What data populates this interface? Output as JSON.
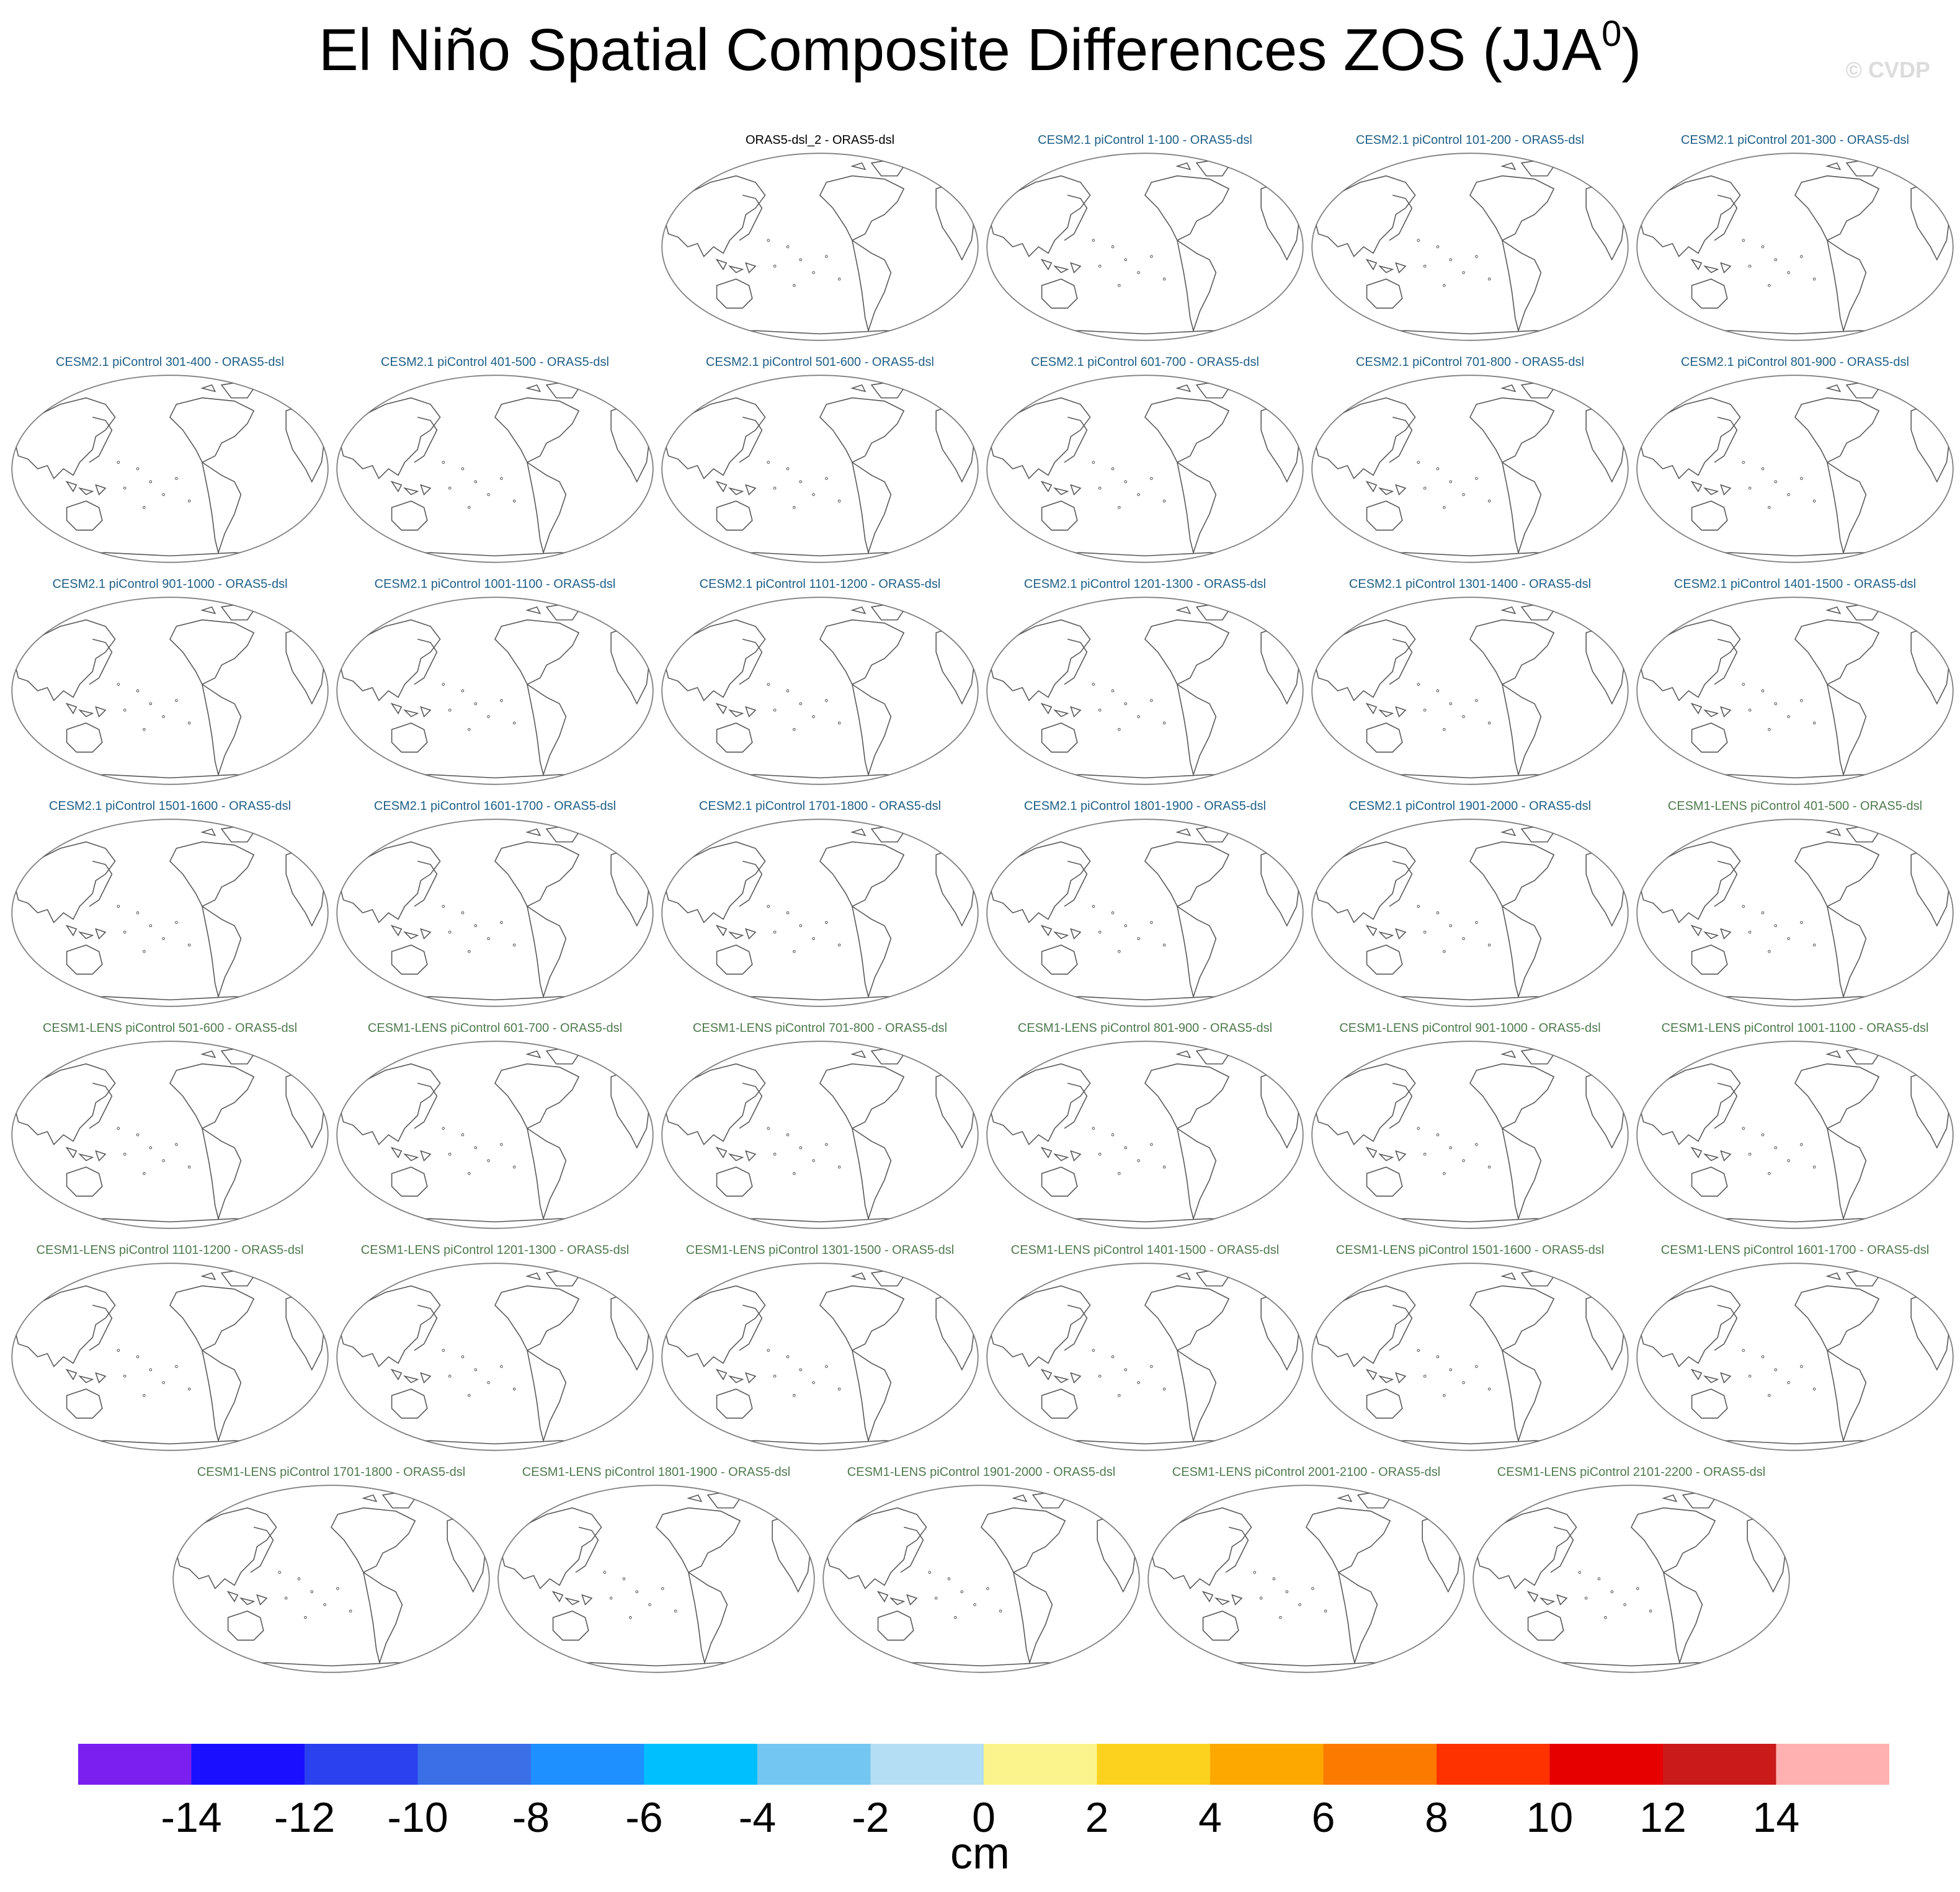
{
  "title": {
    "main": "El Niño Spatial Composite Differences ZOS (JJA",
    "superscript": "0",
    "close": ")"
  },
  "watermark": "© CVDP",
  "colors": {
    "cesm2_title": "#1f5f87",
    "cesm1_title": "#4f7a4f",
    "obs_title": "#000000",
    "map_outline": "#808080",
    "coastline": "#555555"
  },
  "panels": [
    {
      "label": "ORAS5-dsl_2 - ORAS5-dsl",
      "group": "obs"
    },
    {
      "label": "CESM2.1 piControl 1-100 - ORAS5-dsl",
      "group": "cesm2"
    },
    {
      "label": "CESM2.1 piControl 101-200 - ORAS5-dsl",
      "group": "cesm2"
    },
    {
      "label": "CESM2.1 piControl 201-300 - ORAS5-dsl",
      "group": "cesm2"
    },
    {
      "label": "CESM2.1 piControl 301-400 - ORAS5-dsl",
      "group": "cesm2"
    },
    {
      "label": "CESM2.1 piControl 401-500 - ORAS5-dsl",
      "group": "cesm2"
    },
    {
      "label": "CESM2.1 piControl 501-600 - ORAS5-dsl",
      "group": "cesm2"
    },
    {
      "label": "CESM2.1 piControl 601-700 - ORAS5-dsl",
      "group": "cesm2"
    },
    {
      "label": "CESM2.1 piControl 701-800 - ORAS5-dsl",
      "group": "cesm2"
    },
    {
      "label": "CESM2.1 piControl 801-900 - ORAS5-dsl",
      "group": "cesm2"
    },
    {
      "label": "CESM2.1 piControl 901-1000 - ORAS5-dsl",
      "group": "cesm2"
    },
    {
      "label": "CESM2.1 piControl 1001-1100 - ORAS5-dsl",
      "group": "cesm2"
    },
    {
      "label": "CESM2.1 piControl 1101-1200 - ORAS5-dsl",
      "group": "cesm2"
    },
    {
      "label": "CESM2.1 piControl 1201-1300 - ORAS5-dsl",
      "group": "cesm2"
    },
    {
      "label": "CESM2.1 piControl 1301-1400 - ORAS5-dsl",
      "group": "cesm2"
    },
    {
      "label": "CESM2.1 piControl 1401-1500 - ORAS5-dsl",
      "group": "cesm2"
    },
    {
      "label": "CESM2.1 piControl 1501-1600 - ORAS5-dsl",
      "group": "cesm2"
    },
    {
      "label": "CESM2.1 piControl 1601-1700 - ORAS5-dsl",
      "group": "cesm2"
    },
    {
      "label": "CESM2.1 piControl 1701-1800 - ORAS5-dsl",
      "group": "cesm2"
    },
    {
      "label": "CESM2.1 piControl 1801-1900 - ORAS5-dsl",
      "group": "cesm2"
    },
    {
      "label": "CESM2.1 piControl 1901-2000 - ORAS5-dsl",
      "group": "cesm2"
    },
    {
      "label": "CESM1-LENS piControl 401-500 - ORAS5-dsl",
      "group": "cesm1"
    },
    {
      "label": "CESM1-LENS piControl 501-600 - ORAS5-dsl",
      "group": "cesm1"
    },
    {
      "label": "CESM1-LENS piControl 601-700 - ORAS5-dsl",
      "group": "cesm1"
    },
    {
      "label": "CESM1-LENS piControl 701-800 - ORAS5-dsl",
      "group": "cesm1"
    },
    {
      "label": "CESM1-LENS piControl 801-900 - ORAS5-dsl",
      "group": "cesm1"
    },
    {
      "label": "CESM1-LENS piControl 901-1000 - ORAS5-dsl",
      "group": "cesm1"
    },
    {
      "label": "CESM1-LENS piControl 1001-1100 - ORAS5-dsl",
      "group": "cesm1"
    },
    {
      "label": "CESM1-LENS piControl 1101-1200 - ORAS5-dsl",
      "group": "cesm1"
    },
    {
      "label": "CESM1-LENS piControl 1201-1300 - ORAS5-dsl",
      "group": "cesm1"
    },
    {
      "label": "CESM1-LENS piControl 1301-1500 - ORAS5-dsl",
      "group": "cesm1"
    },
    {
      "label": "CESM1-LENS piControl 1401-1500 - ORAS5-dsl",
      "group": "cesm1"
    },
    {
      "label": "CESM1-LENS piControl 1501-1600 - ORAS5-dsl",
      "group": "cesm1"
    },
    {
      "label": "CESM1-LENS piControl 1601-1700 - ORAS5-dsl",
      "group": "cesm1"
    },
    {
      "label": "CESM1-LENS piControl 1701-1800 - ORAS5-dsl",
      "group": "cesm1"
    },
    {
      "label": "CESM1-LENS piControl 1801-1900 - ORAS5-dsl",
      "group": "cesm1"
    },
    {
      "label": "CESM1-LENS piControl 1901-2000 - ORAS5-dsl",
      "group": "cesm1"
    },
    {
      "label": "CESM1-LENS piControl 2001-2100 - ORAS5-dsl",
      "group": "cesm1"
    },
    {
      "label": "CESM1-LENS piControl 2101-2200 - ORAS5-dsl",
      "group": "cesm1"
    }
  ],
  "chart_data": {
    "type": "heatmap",
    "title": "El Niño Spatial Composite Differences ZOS (JJA0)",
    "projection": "Robinson, Pacific-centered",
    "field": "sea surface height difference (no shading visible)",
    "colorbar": {
      "units": "cm",
      "tick_labels": [
        "-14",
        "-12",
        "-10",
        "-8",
        "-6",
        "-4",
        "-2",
        "0",
        "2",
        "4",
        "6",
        "8",
        "10",
        "12",
        "14"
      ],
      "levels": [
        -14,
        -12,
        -10,
        -8,
        -6,
        -4,
        -2,
        0,
        2,
        4,
        6,
        8,
        10,
        12,
        14
      ],
      "colors": [
        "#7a1ff0",
        "#1a10ff",
        "#2b40ee",
        "#3a6fe8",
        "#1e90ff",
        "#00bfff",
        "#74c6f2",
        "#b4def4",
        "#fbf48c",
        "#fdd21f",
        "#fca800",
        "#fc7a00",
        "#fd3200",
        "#e70000",
        "#ca1a1a",
        "#ffb0b0"
      ]
    }
  }
}
